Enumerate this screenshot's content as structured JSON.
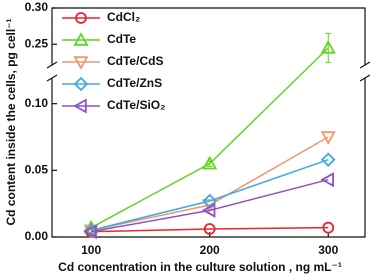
{
  "chart_data": {
    "type": "line",
    "x_label": "Cd concentration in the culture solution , ng mL⁻¹",
    "y_label": "Cd content inside the cells, pg cell⁻¹",
    "x": [
      100,
      200,
      300
    ],
    "xlim": [
      67,
      331
    ],
    "xticks": [
      100,
      200,
      300
    ],
    "ylim": [
      0,
      0.3
    ],
    "y_break": [
      0.12,
      0.22
    ],
    "yticks": [
      {
        "value": 0,
        "label": "0.00"
      },
      0.05,
      {
        "value": 0.1,
        "label": "0.10"
      },
      0.25,
      {
        "value": 0.3,
        "label": "0.30"
      }
    ],
    "legend": "upper left",
    "series": [
      {
        "name": "CdCl₂",
        "color": "#e8262b",
        "marker": "circle",
        "values": [
          0.004,
          0.006,
          0.007
        ]
      },
      {
        "name": "CdTe",
        "color": "#5fd61e",
        "marker": "triangle-up",
        "values": [
          0.007,
          0.055,
          0.245
        ],
        "errors": [
          0.001,
          0.002,
          0.02
        ]
      },
      {
        "name": "CdTe/CdS",
        "color": "#f4956a",
        "marker": "triangle-down",
        "values": [
          0.005,
          0.024,
          0.075
        ]
      },
      {
        "name": "CdTe/ZnS",
        "color": "#3fa9e0",
        "marker": "diamond",
        "values": [
          0.005,
          0.027,
          0.058
        ]
      },
      {
        "name": "CdTe/SiO₂",
        "color": "#8c52c8",
        "marker": "triangle-left",
        "values": [
          0.004,
          0.02,
          0.043
        ]
      }
    ]
  }
}
